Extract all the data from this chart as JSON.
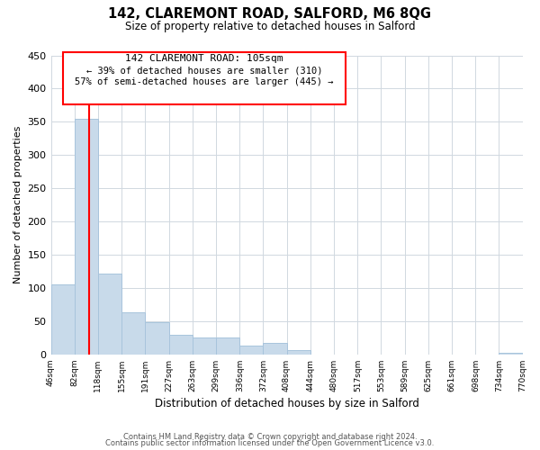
{
  "title": "142, CLAREMONT ROAD, SALFORD, M6 8QG",
  "subtitle": "Size of property relative to detached houses in Salford",
  "xlabel": "Distribution of detached houses by size in Salford",
  "ylabel": "Number of detached properties",
  "bar_color": "#c8daea",
  "bar_edge_color": "#a8c4dc",
  "reference_line_x": 105,
  "reference_line_color": "red",
  "annotation_title": "142 CLAREMONT ROAD: 105sqm",
  "annotation_line1": "← 39% of detached houses are smaller (310)",
  "annotation_line2": "57% of semi-detached houses are larger (445) →",
  "bin_edges": [
    46,
    82,
    118,
    155,
    191,
    227,
    263,
    299,
    336,
    372,
    408,
    444,
    480,
    517,
    553,
    589,
    625,
    661,
    698,
    734,
    770
  ],
  "counts": [
    106,
    355,
    122,
    63,
    49,
    30,
    26,
    25,
    13,
    17,
    7,
    0,
    0,
    0,
    0,
    0,
    0,
    0,
    0,
    2
  ],
  "ylim": [
    0,
    450
  ],
  "yticks": [
    0,
    50,
    100,
    150,
    200,
    250,
    300,
    350,
    400,
    450
  ],
  "footer1": "Contains HM Land Registry data © Crown copyright and database right 2024.",
  "footer2": "Contains public sector information licensed under the Open Government Licence v3.0."
}
